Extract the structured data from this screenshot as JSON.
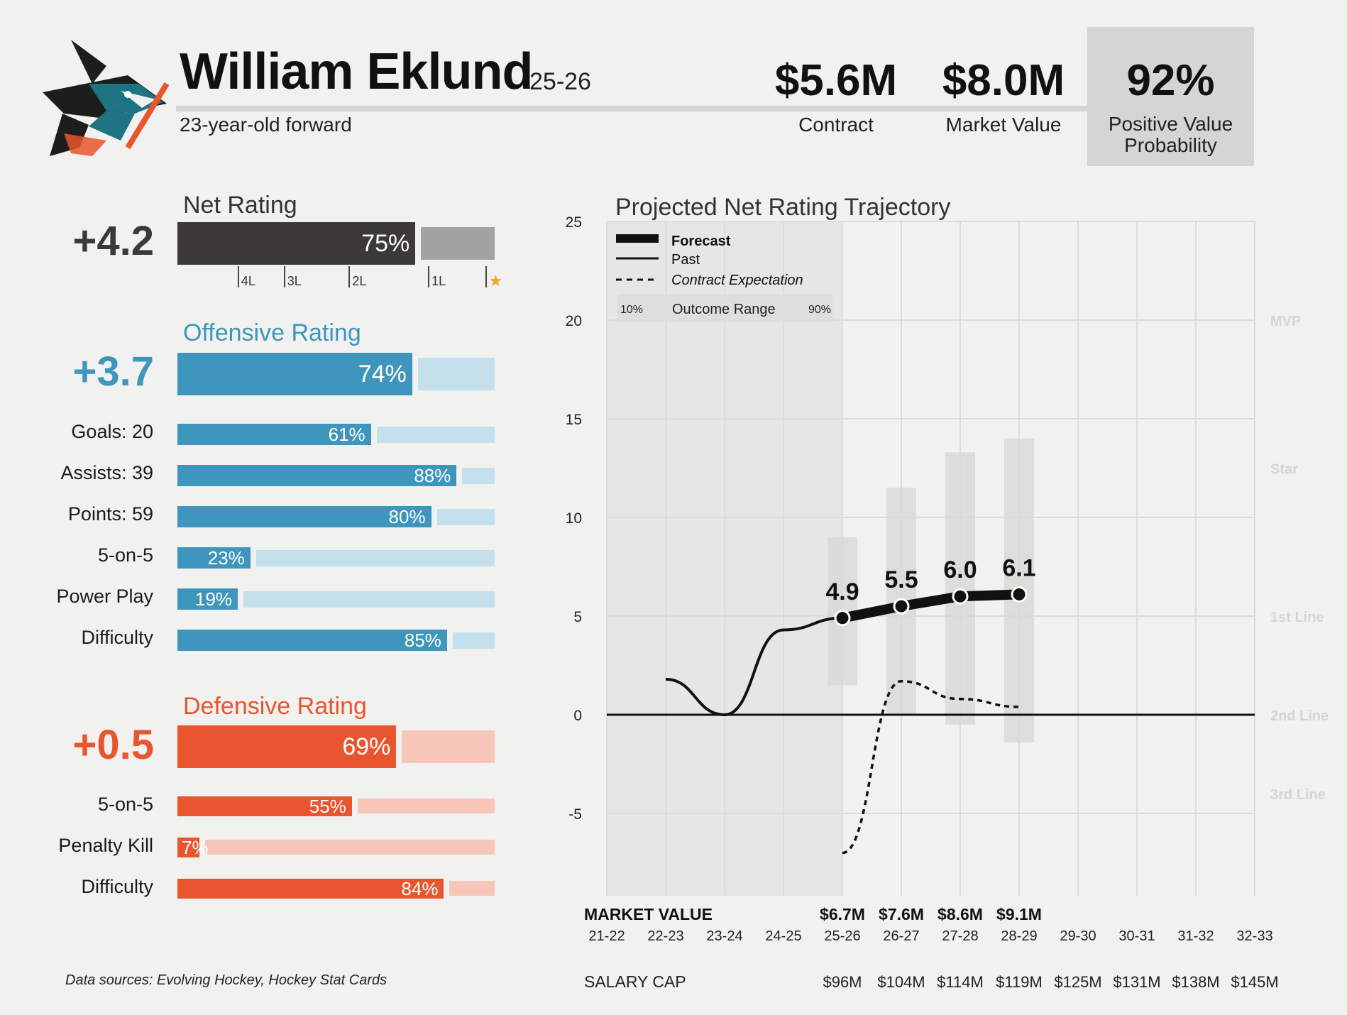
{
  "player": {
    "name": "William Eklund",
    "season": "25-26",
    "description": "23-year-old forward",
    "team_logo": "sharks-logo-icon"
  },
  "header_stats": {
    "contract": {
      "value": "$5.6M",
      "label": "Contract"
    },
    "market_value": {
      "value": "$8.0M",
      "label": "Market Value"
    },
    "positive_value_probability": {
      "value": "92%",
      "label_line1": "Positive Value",
      "label_line2": "Probability",
      "fraction": 0.92
    }
  },
  "net_rating": {
    "title": "Net Rating",
    "value": "+4.2",
    "percentile_label": "75%",
    "percentile": 75,
    "color": "#3b3a38",
    "track_color": "#a3a3a1",
    "tiers": [
      {
        "label": "4L",
        "percentile": 19
      },
      {
        "label": "3L",
        "percentile": 33.5
      },
      {
        "label": "2L",
        "percentile": 54
      },
      {
        "label": "1L",
        "percentile": 79
      },
      {
        "label": "★",
        "percentile": 97
      }
    ]
  },
  "offensive": {
    "title": "Offensive Rating",
    "value": "+3.7",
    "percentile_label": "74%",
    "percentile": 74,
    "color": "#3f96bc",
    "track_color": "#c3e0ec",
    "rows": [
      {
        "label": "Goals: 20",
        "pct_label": "61%",
        "pct": 61
      },
      {
        "label": "Assists: 39",
        "pct_label": "88%",
        "pct": 88
      },
      {
        "label": "Points: 59",
        "pct_label": "80%",
        "pct": 80
      },
      {
        "label": "5-on-5",
        "pct_label": "23%",
        "pct": 23
      },
      {
        "label": "Power Play",
        "pct_label": "19%",
        "pct": 19
      },
      {
        "label": "Difficulty",
        "pct_label": "85%",
        "pct": 85
      }
    ]
  },
  "defensive": {
    "title": "Defensive Rating",
    "value": "+0.5",
    "percentile_label": "69%",
    "percentile": 69,
    "color": "#e8552e",
    "track_color": "#f7c6b8",
    "rows": [
      {
        "label": "5-on-5",
        "pct_label": "55%",
        "pct": 55
      },
      {
        "label": "Penalty Kill",
        "pct_label": "7%",
        "pct": 7
      },
      {
        "label": "Difficulty",
        "pct_label": "84%",
        "pct": 84
      }
    ]
  },
  "sources": "Data sources: Evolving Hockey, Hockey Stat Cards",
  "chart_data": {
    "type": "line",
    "title": "Projected Net Rating Trajectory",
    "seasons": [
      "21-22",
      "22-23",
      "23-24",
      "24-25",
      "25-26",
      "26-27",
      "27-28",
      "28-29",
      "29-30",
      "30-31",
      "31-32",
      "32-33"
    ],
    "ylim": [
      -9,
      25
    ],
    "yticks": [
      25,
      20,
      15,
      10,
      5,
      0,
      -5
    ],
    "tier_labels": [
      {
        "label": "MVP",
        "y": 20
      },
      {
        "label": "Star",
        "y": 12.5
      },
      {
        "label": "1st Line",
        "y": 5
      },
      {
        "label": "2nd Line",
        "y": 0
      },
      {
        "label": "3rd Line",
        "y": -4
      }
    ],
    "legend": {
      "forecast": "Forecast",
      "past": "Past",
      "contract": "Contract Expectation",
      "range_low": "10%",
      "range_label": "Outcome Range",
      "range_high": "90%"
    },
    "past": [
      {
        "season": "22-23",
        "y": 1.8
      },
      {
        "season": "23-24",
        "y": 0.0
      },
      {
        "season": "24-25",
        "y": 4.3
      },
      {
        "season": "25-26",
        "y": 4.9
      }
    ],
    "forecast": [
      {
        "season": "25-26",
        "y": 4.9,
        "label": "4.9"
      },
      {
        "season": "26-27",
        "y": 5.5,
        "label": "5.5"
      },
      {
        "season": "27-28",
        "y": 6.0,
        "label": "6.0"
      },
      {
        "season": "28-29",
        "y": 6.1,
        "label": "6.1"
      }
    ],
    "contract_expectation": [
      {
        "season": "25-26",
        "y": -7.0
      },
      {
        "season": "26-27",
        "y": 1.7
      },
      {
        "season": "27-28",
        "y": 0.8
      },
      {
        "season": "28-29",
        "y": 0.4
      }
    ],
    "outcome_range": [
      {
        "season": "25-26",
        "low": 1.5,
        "high": 9.0
      },
      {
        "season": "26-27",
        "low": 0.0,
        "high": 11.5
      },
      {
        "season": "27-28",
        "low": -0.5,
        "high": 13.3
      },
      {
        "season": "28-29",
        "low": -1.4,
        "high": 14.0
      }
    ],
    "market_value_title": "MARKET VALUE",
    "market_value": [
      {
        "season": "25-26",
        "value": "$6.7M"
      },
      {
        "season": "26-27",
        "value": "$7.6M"
      },
      {
        "season": "27-28",
        "value": "$8.6M"
      },
      {
        "season": "28-29",
        "value": "$9.1M"
      }
    ],
    "salary_cap_title": "SALARY CAP",
    "salary_cap": [
      {
        "season": "25-26",
        "value": "$96M"
      },
      {
        "season": "26-27",
        "value": "$104M"
      },
      {
        "season": "27-28",
        "value": "$114M"
      },
      {
        "season": "28-29",
        "value": "$119M"
      },
      {
        "season": "29-30",
        "value": "$125M"
      },
      {
        "season": "30-31",
        "value": "$131M"
      },
      {
        "season": "31-32",
        "value": "$138M"
      },
      {
        "season": "32-33",
        "value": "$145M"
      }
    ]
  }
}
